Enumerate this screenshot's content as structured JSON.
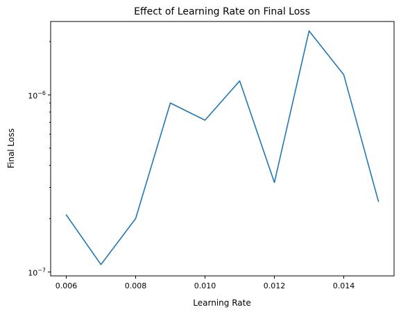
{
  "chart_data": {
    "type": "line",
    "title": "Effect of Learning Rate on Final Loss",
    "xlabel": "Learning Rate",
    "ylabel": "Final Loss",
    "xlim": [
      0.00555,
      0.01545
    ],
    "ylim": [
      9.5e-08,
      2.6e-06
    ],
    "yscale": "log",
    "grid": false,
    "x_ticks": [
      {
        "value": 0.006,
        "label": "0.006"
      },
      {
        "value": 0.008,
        "label": "0.008"
      },
      {
        "value": 0.01,
        "label": "0.010"
      },
      {
        "value": 0.012,
        "label": "0.012"
      },
      {
        "value": 0.014,
        "label": "0.014"
      }
    ],
    "y_major_ticks": [
      {
        "value": 1e-07,
        "base": "10",
        "exp": "−7"
      },
      {
        "value": 1e-06,
        "base": "10",
        "exp": "−6"
      }
    ],
    "y_minor_ticks": [
      2e-07,
      3e-07,
      4e-07,
      5e-07,
      6e-07,
      7e-07,
      8e-07,
      9e-07,
      2e-06
    ],
    "series": [
      {
        "color": "#1f77b4",
        "x": [
          0.006,
          0.007,
          0.008,
          0.009,
          0.01,
          0.011,
          0.012,
          0.013,
          0.014,
          0.015
        ],
        "y": [
          2.1e-07,
          1.1e-07,
          2e-07,
          9e-07,
          7.2e-07,
          1.2e-06,
          3.2e-07,
          2.3e-06,
          1.3e-06,
          2.5e-07
        ]
      }
    ]
  }
}
